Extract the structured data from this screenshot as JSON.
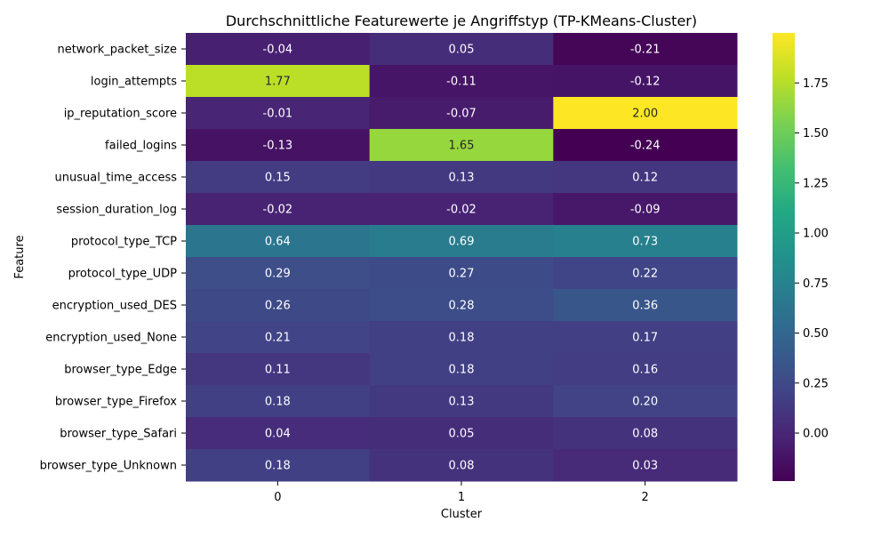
{
  "chart_data": {
    "type": "heatmap",
    "title": "Durchschnittliche Featurewerte je Angriffstyp (TP-KMeans-Cluster)",
    "xlabel": "Cluster",
    "ylabel": "Feature",
    "columns": [
      "0",
      "1",
      "2"
    ],
    "rows": [
      "network_packet_size",
      "login_attempts",
      "ip_reputation_score",
      "failed_logins",
      "unusual_time_access",
      "session_duration_log",
      "protocol_type_TCP",
      "protocol_type_UDP",
      "encryption_used_DES",
      "encryption_used_None",
      "browser_type_Edge",
      "browser_type_Firefox",
      "browser_type_Safari",
      "browser_type_Unknown"
    ],
    "values": [
      [
        -0.04,
        0.05,
        -0.21
      ],
      [
        1.77,
        -0.11,
        -0.12
      ],
      [
        -0.01,
        -0.07,
        2.0
      ],
      [
        -0.13,
        1.65,
        -0.24
      ],
      [
        0.15,
        0.13,
        0.12
      ],
      [
        -0.02,
        -0.02,
        -0.09
      ],
      [
        0.64,
        0.69,
        0.73
      ],
      [
        0.29,
        0.27,
        0.22
      ],
      [
        0.26,
        0.28,
        0.36
      ],
      [
        0.21,
        0.18,
        0.17
      ],
      [
        0.11,
        0.18,
        0.16
      ],
      [
        0.18,
        0.13,
        0.2
      ],
      [
        0.04,
        0.05,
        0.08
      ],
      [
        0.18,
        0.08,
        0.03
      ]
    ],
    "value_labels": [
      [
        "-0.04",
        "0.05",
        "-0.21"
      ],
      [
        "1.77",
        "-0.11",
        "-0.12"
      ],
      [
        "-0.01",
        "-0.07",
        "2.00"
      ],
      [
        "-0.13",
        "1.65",
        "-0.24"
      ],
      [
        "0.15",
        "0.13",
        "0.12"
      ],
      [
        "-0.02",
        "-0.02",
        "-0.09"
      ],
      [
        "0.64",
        "0.69",
        "0.73"
      ],
      [
        "0.29",
        "0.27",
        "0.22"
      ],
      [
        "0.26",
        "0.28",
        "0.36"
      ],
      [
        "0.21",
        "0.18",
        "0.17"
      ],
      [
        "0.11",
        "0.18",
        "0.16"
      ],
      [
        "0.18",
        "0.13",
        "0.20"
      ],
      [
        "0.04",
        "0.05",
        "0.08"
      ],
      [
        "0.18",
        "0.08",
        "0.03"
      ]
    ],
    "colormap": "viridis",
    "vmin": -0.24,
    "vmax": 2.0,
    "colorbar": {
      "ticks": [
        0.0,
        0.25,
        0.5,
        0.75,
        1.0,
        1.25,
        1.5,
        1.75
      ],
      "tick_labels": [
        "0.00",
        "0.25",
        "0.50",
        "0.75",
        "1.00",
        "1.25",
        "1.50",
        "1.75"
      ],
      "position": "right"
    },
    "grid": false
  }
}
